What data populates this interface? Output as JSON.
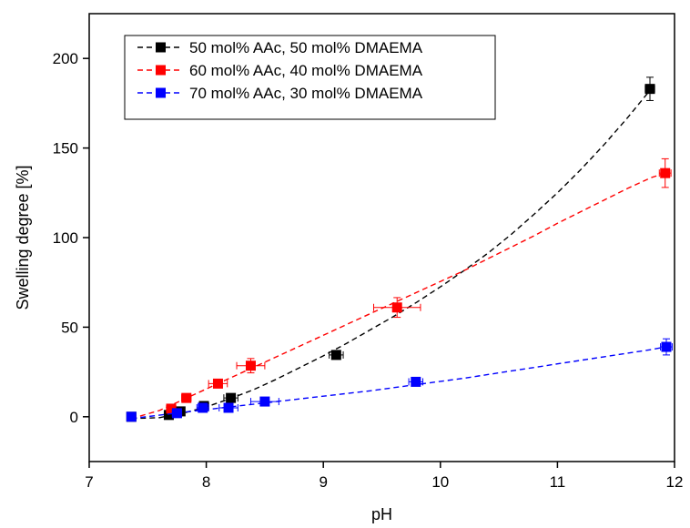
{
  "chart_data": {
    "type": "scatter",
    "xlabel": "pH",
    "ylabel": "Swelling degree [%]",
    "xlim": [
      7,
      12
    ],
    "ylim": [
      -25,
      225
    ],
    "x_ticks": [
      7,
      8,
      9,
      10,
      11,
      12
    ],
    "y_ticks": [
      0,
      50,
      100,
      150,
      200
    ],
    "x_tick_labels": [
      "7",
      "8",
      "9",
      "10",
      "11",
      "12"
    ],
    "y_tick_labels": [
      "0",
      "50",
      "100",
      "150",
      "200"
    ],
    "legend_position": "top-left",
    "grid": false,
    "series": [
      {
        "name": "50 mol% AAc, 50 mol% DMAEMA",
        "color": "#000000",
        "marker": "square",
        "line": "dashed-fit",
        "x": [
          7.36,
          7.68,
          7.78,
          7.98,
          8.21,
          9.11,
          11.79
        ],
        "y": [
          0,
          1,
          3,
          6,
          10.5,
          34.5,
          183
        ],
        "yerr": [
          1,
          1,
          1,
          1.5,
          1.5,
          2,
          6.5
        ],
        "xerr": [
          0.02,
          0.03,
          0.03,
          0.04,
          0.06,
          0.06,
          0.04
        ],
        "fit_x": [
          7.36,
          7.6,
          7.8,
          8.0,
          8.2,
          8.4,
          8.6,
          8.8,
          9.0,
          9.2,
          9.4,
          9.6,
          9.8,
          10.0,
          10.2,
          10.4,
          10.6,
          10.8,
          11.0,
          11.2,
          11.4,
          11.6,
          11.8
        ],
        "fit_y": [
          -1,
          -0.5,
          2,
          5.5,
          10,
          15,
          21,
          27.5,
          34,
          41,
          48.5,
          56,
          64,
          72.5,
          81.5,
          91,
          101.5,
          113,
          125,
          138,
          152,
          167,
          183
        ]
      },
      {
        "name": "60 mol% AAc, 40 mol% DMAEMA",
        "color": "#ff0000",
        "marker": "square",
        "line": "dashed-fit",
        "x": [
          7.7,
          7.83,
          8.1,
          8.38,
          9.63,
          11.92
        ],
        "y": [
          4.5,
          10.5,
          18.5,
          28.5,
          61,
          136
        ],
        "yerr": [
          1,
          1.5,
          2,
          4,
          5.5,
          8
        ],
        "xerr": [
          0.04,
          0.04,
          0.08,
          0.12,
          0.2,
          0.05
        ],
        "fit_x": [
          7.36,
          7.6,
          7.8,
          8.0,
          8.2,
          8.4,
          8.6,
          8.8,
          9.0,
          9.2,
          9.4,
          9.6,
          9.8,
          10.0,
          10.2,
          10.4,
          10.6,
          10.8,
          11.0,
          11.2,
          11.4,
          11.6,
          11.8,
          11.92
        ],
        "fit_y": [
          -1,
          3.5,
          9.5,
          15.5,
          21.5,
          27.5,
          33.5,
          39.5,
          45.5,
          51.5,
          57.5,
          63.5,
          69.5,
          75.5,
          81.5,
          88,
          94.5,
          101,
          108,
          114.5,
          121,
          127.5,
          133.5,
          136
        ]
      },
      {
        "name": "70 mol% AAc, 30 mol% DMAEMA",
        "color": "#0000ff",
        "marker": "square",
        "line": "dashed-fit",
        "x": [
          7.36,
          7.75,
          7.97,
          8.19,
          8.5,
          9.79,
          11.93
        ],
        "y": [
          0,
          2,
          5,
          5,
          8.5,
          19.5,
          39
        ],
        "yerr": [
          1,
          1,
          1.5,
          2,
          2,
          2,
          4.5
        ],
        "xerr": [
          0.03,
          0.04,
          0.05,
          0.08,
          0.12,
          0.06,
          0.05
        ],
        "fit_x": [
          7.36,
          7.8,
          8.2,
          8.6,
          9.0,
          9.4,
          9.8,
          10.2,
          10.6,
          11.0,
          11.4,
          11.8,
          11.93
        ],
        "fit_y": [
          -1,
          2.5,
          5.5,
          8.5,
          11.5,
          14.5,
          18,
          21.5,
          25.5,
          29.5,
          33.5,
          37.5,
          39
        ]
      }
    ]
  }
}
